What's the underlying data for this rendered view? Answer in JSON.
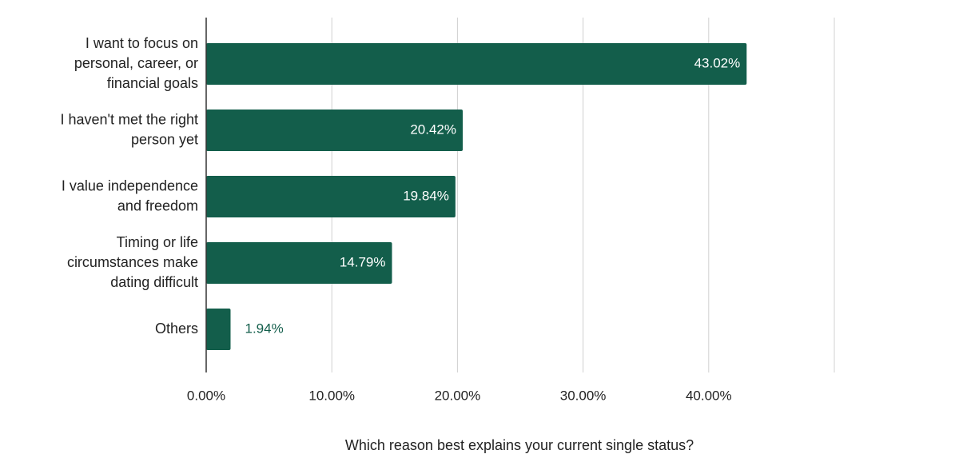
{
  "chart_data": {
    "type": "bar",
    "orientation": "horizontal",
    "title": "",
    "xlabel": "Which reason best explains your current single status?",
    "ylabel": "",
    "categories": [
      "I want to focus on personal, career, or financial goals",
      "I haven't met the right person yet",
      "I value independence and freedom",
      "Timing or life circumstances make dating difficult",
      "Others"
    ],
    "category_lines": [
      [
        "I want to focus on",
        "personal, career, or",
        "financial goals"
      ],
      [
        "I haven't met the right",
        "person yet"
      ],
      [
        "I value independence",
        "and freedom"
      ],
      [
        "Timing or life",
        "circumstances make",
        "dating difficult"
      ],
      [
        "Others"
      ]
    ],
    "values": [
      43.02,
      20.42,
      19.84,
      14.79,
      1.94
    ],
    "data_labels": [
      "43.02%",
      "20.42%",
      "19.84%",
      "14.79%",
      "1.94%"
    ],
    "xlim": [
      0,
      50
    ],
    "x_ticks": [
      0,
      10,
      20,
      30,
      40
    ],
    "x_tick_labels": [
      "0.00%",
      "10.00%",
      "20.00%",
      "30.00%",
      "40.00%"
    ],
    "grid": true,
    "legend": "none",
    "colors": {
      "bar": "#135e4b",
      "label_inside": "#ffffff",
      "label_outside": "#135e4b",
      "grid": "#d0d0d0",
      "axis": "#333333",
      "text": "#222222"
    }
  }
}
